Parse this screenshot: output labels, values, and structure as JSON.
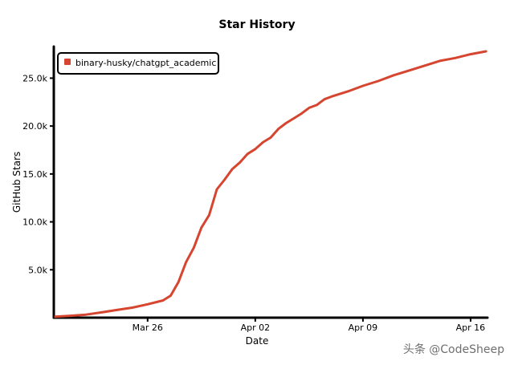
{
  "chart_data": {
    "type": "line",
    "title": "Star History",
    "xlabel": "Date",
    "ylabel": "GitHub Stars",
    "x_ticks": [
      {
        "label": "Mar 26",
        "day": 6
      },
      {
        "label": "Apr 02",
        "day": 13
      },
      {
        "label": "Apr 09",
        "day": 20
      },
      {
        "label": "Apr 16",
        "day": 27
      }
    ],
    "y_ticks": [
      {
        "label": "5.0k",
        "value": 5000
      },
      {
        "label": "10.0k",
        "value": 10000
      },
      {
        "label": "15.0k",
        "value": 15000
      },
      {
        "label": "20.0k",
        "value": 20000
      },
      {
        "label": "25.0k",
        "value": 25000
      }
    ],
    "xlim": [
      -0.1,
      28.1
    ],
    "ylim": [
      0,
      28300
    ],
    "legend_position": "top-left",
    "series": [
      {
        "name": "binary-husky/chatgpt_academic",
        "color": "#d6452f",
        "points": [
          [
            0,
            100
          ],
          [
            1,
            200
          ],
          [
            2,
            320
          ],
          [
            3,
            550
          ],
          [
            4,
            800
          ],
          [
            5,
            1050
          ],
          [
            6,
            1400
          ],
          [
            7,
            1800
          ],
          [
            7.5,
            2300
          ],
          [
            8,
            3700
          ],
          [
            8.5,
            5800
          ],
          [
            9,
            7300
          ],
          [
            9.5,
            9400
          ],
          [
            10,
            10700
          ],
          [
            10.5,
            13400
          ],
          [
            11,
            14400
          ],
          [
            11.5,
            15500
          ],
          [
            12,
            16200
          ],
          [
            12.5,
            17100
          ],
          [
            13,
            17600
          ],
          [
            13.5,
            18300
          ],
          [
            14,
            18800
          ],
          [
            14.5,
            19700
          ],
          [
            15,
            20300
          ],
          [
            15.5,
            20800
          ],
          [
            16,
            21300
          ],
          [
            16.5,
            21900
          ],
          [
            17,
            22200
          ],
          [
            17.5,
            22800
          ],
          [
            18,
            23100
          ],
          [
            19,
            23600
          ],
          [
            20,
            24200
          ],
          [
            21,
            24700
          ],
          [
            22,
            25300
          ],
          [
            23,
            25800
          ],
          [
            24,
            26300
          ],
          [
            25,
            26800
          ],
          [
            26,
            27100
          ],
          [
            27,
            27500
          ],
          [
            28,
            27800
          ]
        ]
      }
    ]
  },
  "watermark_text": "头条 @CodeSheep"
}
